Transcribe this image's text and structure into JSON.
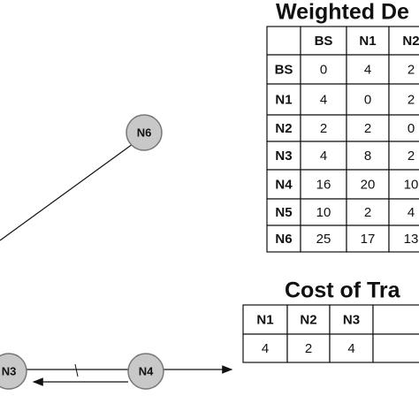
{
  "nodes": [
    {
      "label": "N6"
    },
    {
      "label": "N3"
    },
    {
      "label": "N4"
    }
  ],
  "weighted_table": {
    "title": "Weighted De",
    "columns": [
      "BS",
      "N1",
      "N2"
    ],
    "rows": [
      {
        "label": "BS",
        "values": [
          0,
          4,
          2
        ]
      },
      {
        "label": "N1",
        "values": [
          4,
          0,
          2
        ]
      },
      {
        "label": "N2",
        "values": [
          2,
          2,
          0
        ]
      },
      {
        "label": "N3",
        "values": [
          4,
          8,
          2
        ]
      },
      {
        "label": "N4",
        "values": [
          16,
          20,
          10
        ]
      },
      {
        "label": "N5",
        "values": [
          10,
          2,
          4
        ]
      },
      {
        "label": "N6",
        "values": [
          25,
          17,
          13
        ]
      }
    ]
  },
  "cost_table": {
    "title": "Cost of Tra",
    "columns": [
      "N1",
      "N2",
      "N3"
    ],
    "values": [
      4,
      2,
      4
    ]
  }
}
